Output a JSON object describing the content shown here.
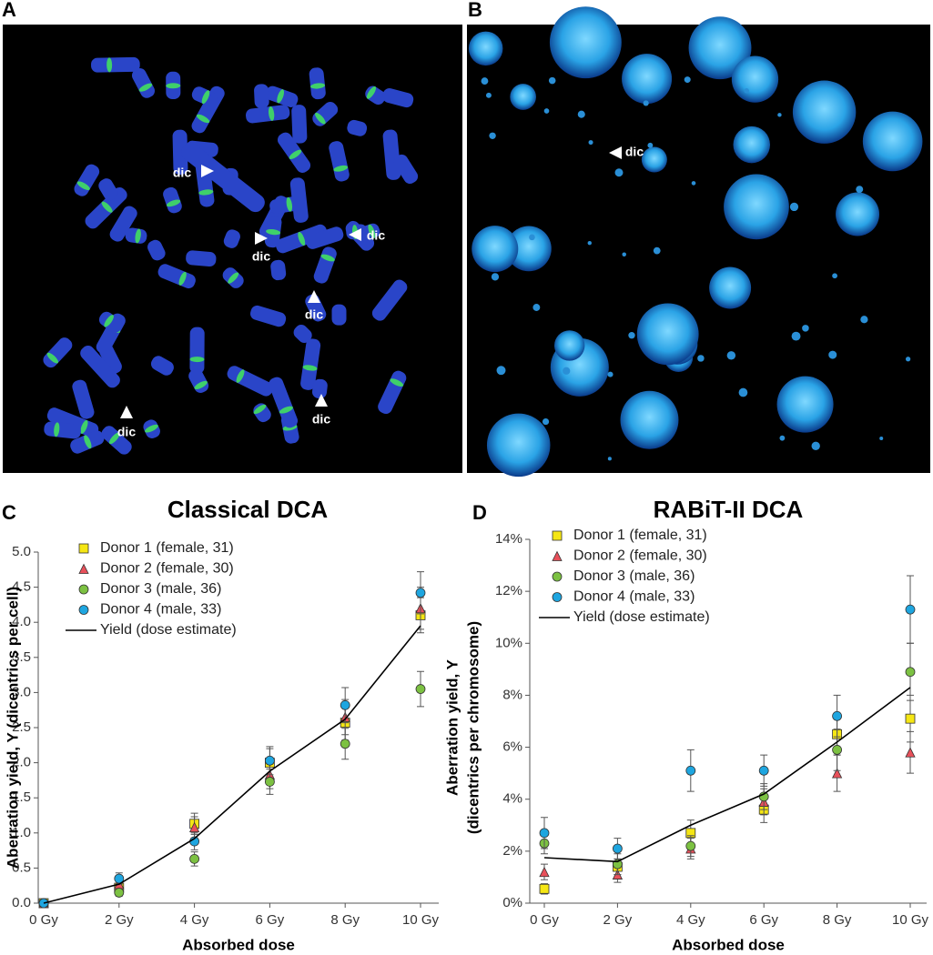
{
  "panels": [
    {
      "letter": "A",
      "labels": [
        "dic",
        "dic",
        "dic",
        "dic",
        "dic",
        "dic"
      ]
    },
    {
      "letter": "B",
      "labels": [
        "dic"
      ]
    }
  ],
  "chart_data": [
    {
      "type": "scatter",
      "letter": "C",
      "title": "Classical DCA",
      "xlabel": "Absorbed dose",
      "ylabel": [
        "Aberration yield, Y (dicentrics per cell)"
      ],
      "categories": [
        "0 Gy",
        "2 Gy",
        "4 Gy",
        "6 Gy",
        "8 Gy",
        "10 Gy"
      ],
      "ylim": [
        0,
        5
      ],
      "yticks": [
        {
          "value": 0,
          "label": "0.0"
        },
        0.5,
        {
          "value": 1,
          "label": "1.0"
        },
        1.5,
        {
          "value": 2,
          "label": "2.0"
        },
        2.5,
        {
          "value": 3,
          "label": "3.0"
        },
        3.5,
        {
          "value": 4,
          "label": "4.0"
        },
        4.5,
        {
          "value": 5,
          "label": "5.0"
        }
      ],
      "series": [
        {
          "name": "Donor 1 (female, 31)",
          "color": "#f5e614",
          "marker": "square",
          "values": [
            0,
            0.22,
            1.13,
            2.0,
            2.57,
            4.1
          ],
          "errors": [
            0,
            0.06,
            0.15,
            0.2,
            0.25,
            0.25
          ]
        },
        {
          "name": "Donor 2 (female, 30)",
          "color": "#e8505a",
          "marker": "triangle",
          "values": [
            0,
            0.27,
            1.08,
            1.83,
            2.65,
            4.2
          ],
          "errors": [
            0,
            0.07,
            0.15,
            0.2,
            0.25,
            0.3
          ]
        },
        {
          "name": "Donor 3 (male, 36)",
          "color": "#7cc142",
          "marker": "circle",
          "values": [
            0,
            0.15,
            0.63,
            1.73,
            2.27,
            3.05
          ],
          "errors": [
            0,
            0.05,
            0.1,
            0.18,
            0.22,
            0.25
          ]
        },
        {
          "name": "Donor 4 (male, 33)",
          "color": "#1ea6e0",
          "marker": "circle",
          "values": [
            0,
            0.35,
            0.88,
            2.03,
            2.82,
            4.42
          ],
          "errors": [
            0,
            0.08,
            0.12,
            0.2,
            0.25,
            0.3
          ]
        },
        {
          "name": "Yield (dose estimate)",
          "color": "#000000",
          "marker": "line",
          "values": [
            0,
            0.27,
            0.92,
            1.88,
            2.62,
            3.95
          ]
        }
      ]
    },
    {
      "type": "scatter",
      "letter": "D",
      "title": "RABiT-II DCA",
      "xlabel": "Absorbed dose",
      "ylabel": [
        "Aberration yield, Y",
        "(dicentrics per chromosome)"
      ],
      "categories": [
        "0 Gy",
        "2 Gy",
        "4 Gy",
        "6 Gy",
        "8 Gy",
        "10 Gy"
      ],
      "ylim": [
        0,
        14
      ],
      "yticks": [
        {
          "value": 0,
          "label": "0%"
        },
        {
          "value": 2,
          "label": "2%"
        },
        {
          "value": 4,
          "label": "4%"
        },
        {
          "value": 6,
          "label": "6%"
        },
        {
          "value": 8,
          "label": "8%"
        },
        {
          "value": 10,
          "label": "10%"
        },
        {
          "value": 12,
          "label": "12%"
        },
        {
          "value": 14,
          "label": "14%"
        }
      ],
      "series": [
        {
          "name": "Donor 1 (female, 31)",
          "color": "#f5e614",
          "marker": "square",
          "values": [
            0.55,
            1.4,
            2.7,
            3.6,
            6.5,
            7.1
          ],
          "errors": [
            0.2,
            0.3,
            0.5,
            0.5,
            0.8,
            0.9
          ]
        },
        {
          "name": "Donor 2 (female, 30)",
          "color": "#e8505a",
          "marker": "triangle",
          "values": [
            1.2,
            1.1,
            2.1,
            3.9,
            5.0,
            5.8
          ],
          "errors": [
            0.3,
            0.3,
            0.4,
            0.5,
            0.7,
            0.8
          ]
        },
        {
          "name": "Donor 3 (male, 36)",
          "color": "#7cc142",
          "marker": "circle",
          "values": [
            2.3,
            1.5,
            2.2,
            4.1,
            5.9,
            8.9
          ],
          "errors": [
            0.4,
            0.4,
            0.4,
            0.5,
            0.8,
            1.1
          ]
        },
        {
          "name": "Donor 4 (male, 33)",
          "color": "#1ea6e0",
          "marker": "circle",
          "values": [
            2.7,
            2.1,
            5.1,
            5.1,
            7.2,
            11.3
          ],
          "errors": [
            0.6,
            0.4,
            0.8,
            0.6,
            0.8,
            1.3
          ]
        },
        {
          "name": "Yield (dose estimate)",
          "color": "#000000",
          "marker": "line",
          "values": [
            1.75,
            1.6,
            3.0,
            4.2,
            6.2,
            8.3
          ]
        }
      ]
    }
  ]
}
